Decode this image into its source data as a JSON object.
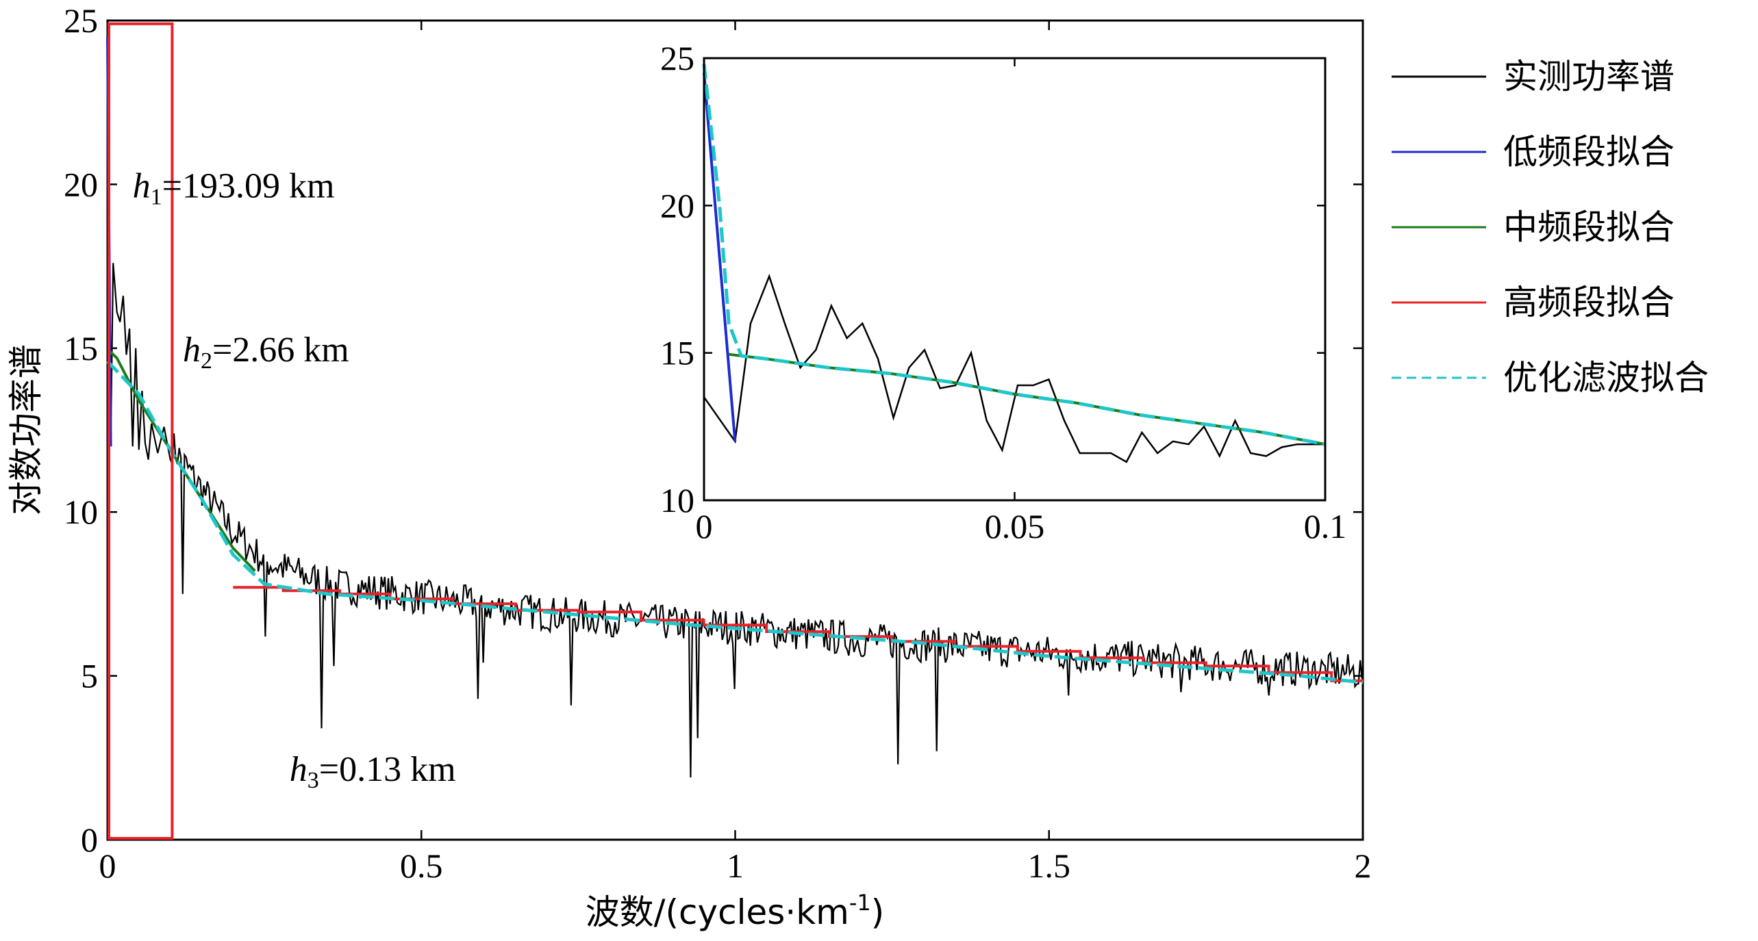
{
  "chart_data": [
    {
      "type": "line",
      "xlabel": "波数/(cycles·km",
      "xlabel_sup": "-1",
      "xlabel_end": ")",
      "ylabel": "对数功率谱",
      "xlim": [
        0,
        2
      ],
      "ylim": [
        0,
        25
      ],
      "xticks": [
        "0",
        "0.5",
        "1",
        "1.5",
        "2"
      ],
      "yticks": [
        "0",
        "5",
        "10",
        "15",
        "20",
        "25"
      ],
      "highlight_box": {
        "x0": 0,
        "x1": 0.103,
        "y0": 0,
        "y1": 24.9,
        "color": "#e8222a"
      },
      "annotations": [
        {
          "base": "h",
          "sub": "1",
          "text": "=193.09 km",
          "x": 0.04,
          "y": 19.6
        },
        {
          "base": "h",
          "sub": "2",
          "text": "=2.66 km",
          "x": 0.12,
          "y": 14.6
        },
        {
          "base": "h",
          "sub": "3",
          "text": "=0.13 km",
          "x": 0.29,
          "y": 1.8
        }
      ],
      "series": [
        {
          "name": "实测功率谱",
          "color": "#000000",
          "style": "solid",
          "trend": [
            [
              0.0,
              14.8
            ],
            [
              0.05,
              14.0
            ],
            [
              0.1,
              12.1
            ],
            [
              0.15,
              10.7
            ],
            [
              0.2,
              9.4
            ],
            [
              0.25,
              8.5
            ],
            [
              0.35,
              7.8
            ],
            [
              0.5,
              7.4
            ],
            [
              0.7,
              6.9
            ],
            [
              0.9,
              6.6
            ],
            [
              1.0,
              6.5
            ],
            [
              1.2,
              6.1
            ],
            [
              1.5,
              5.7
            ],
            [
              1.8,
              5.3
            ],
            [
              2.0,
              5.1
            ]
          ],
          "noise_amplitude": 0.55,
          "dips": [
            [
              0.12,
              7.5
            ],
            [
              0.25,
              6.2
            ],
            [
              0.34,
              3.4
            ],
            [
              0.36,
              5.3
            ],
            [
              0.59,
              4.3
            ],
            [
              0.6,
              5.4
            ],
            [
              0.74,
              4.1
            ],
            [
              0.93,
              1.9
            ],
            [
              0.94,
              3.1
            ],
            [
              1.0,
              4.6
            ],
            [
              1.26,
              2.3
            ],
            [
              1.32,
              2.7
            ],
            [
              1.53,
              4.4
            ],
            [
              1.71,
              4.5
            ],
            [
              1.85,
              4.4
            ]
          ],
          "start_peaks": [
            [
              0.0,
              13.5
            ],
            [
              0.005,
              12.0
            ],
            [
              0.009,
              17.6
            ],
            [
              0.015,
              16.1
            ],
            [
              0.02,
              15.8
            ],
            [
              0.025,
              16.6
            ],
            [
              0.03,
              14.8
            ],
            [
              0.035,
              15.6
            ],
            [
              0.04,
              12.0
            ],
            [
              0.045,
              15.0
            ],
            [
              0.05,
              11.9
            ],
            [
              0.055,
              13.7
            ],
            [
              0.06,
              12.1
            ],
            [
              0.065,
              11.6
            ],
            [
              0.07,
              12.7
            ],
            [
              0.08,
              11.8
            ],
            [
              0.09,
              12.6
            ],
            [
              0.1,
              11.6
            ]
          ]
        },
        {
          "name": "低频段拟合",
          "color": "#1d2bd1",
          "style": "solid",
          "points": [
            [
              0.0,
              24.5
            ],
            [
              0.005,
              12.0
            ]
          ]
        },
        {
          "name": "中频段拟合",
          "color": "#1d7a1d",
          "style": "solid",
          "points": [
            [
              0.004,
              14.9
            ],
            [
              0.015,
              14.7
            ],
            [
              0.05,
              13.4
            ],
            [
              0.1,
              11.9
            ],
            [
              0.15,
              10.4
            ],
            [
              0.2,
              8.9
            ],
            [
              0.235,
              8.2
            ]
          ]
        },
        {
          "name": "高频段拟合",
          "color": "#e8222a",
          "style": "step",
          "points": [
            [
              0.2,
              7.7
            ],
            [
              0.28,
              7.6
            ],
            [
              0.37,
              7.5
            ],
            [
              0.45,
              7.35
            ],
            [
              0.55,
              7.2
            ],
            [
              0.65,
              7.0
            ],
            [
              0.75,
              6.95
            ],
            [
              0.85,
              6.7
            ],
            [
              0.95,
              6.55
            ],
            [
              1.05,
              6.35
            ],
            [
              1.15,
              6.2
            ],
            [
              1.25,
              6.05
            ],
            [
              1.35,
              5.9
            ],
            [
              1.45,
              5.75
            ],
            [
              1.55,
              5.55
            ],
            [
              1.65,
              5.4
            ],
            [
              1.75,
              5.3
            ],
            [
              1.85,
              5.1
            ],
            [
              1.95,
              4.85
            ],
            [
              2.0,
              4.8
            ]
          ]
        },
        {
          "name": "优化滤波拟合",
          "color": "#1fc6c9",
          "style": "dashed",
          "points": [
            [
              0.0,
              14.6
            ],
            [
              0.05,
              13.6
            ],
            [
              0.1,
              11.9
            ],
            [
              0.15,
              10.4
            ],
            [
              0.2,
              8.7
            ],
            [
              0.25,
              7.8
            ],
            [
              0.35,
              7.5
            ],
            [
              0.5,
              7.3
            ],
            [
              0.7,
              6.95
            ],
            [
              0.9,
              6.6
            ],
            [
              1.1,
              6.3
            ],
            [
              1.3,
              6.0
            ],
            [
              1.5,
              5.6
            ],
            [
              1.7,
              5.3
            ],
            [
              1.9,
              5.0
            ],
            [
              2.0,
              4.8
            ]
          ]
        }
      ]
    },
    {
      "type": "line",
      "inset": true,
      "xlim": [
        0,
        0.1
      ],
      "ylim": [
        10,
        25
      ],
      "xticks": [
        "0",
        "0.05",
        "0.1"
      ],
      "yticks": [
        "10",
        "15",
        "20",
        "25"
      ],
      "series": [
        {
          "name": "实测功率谱",
          "color": "#000000",
          "style": "solid",
          "points": [
            [
              0.0,
              13.5
            ],
            [
              0.005,
              12.0
            ],
            [
              0.0075,
              16.0
            ],
            [
              0.0105,
              17.6
            ],
            [
              0.013,
              16.0
            ],
            [
              0.0155,
              14.5
            ],
            [
              0.018,
              15.1
            ],
            [
              0.0205,
              16.6
            ],
            [
              0.023,
              15.5
            ],
            [
              0.0255,
              16.0
            ],
            [
              0.028,
              14.8
            ],
            [
              0.0305,
              12.8
            ],
            [
              0.033,
              14.5
            ],
            [
              0.0355,
              15.1
            ],
            [
              0.038,
              13.8
            ],
            [
              0.0405,
              13.9
            ],
            [
              0.043,
              15.0
            ],
            [
              0.0455,
              12.7
            ],
            [
              0.048,
              11.7
            ],
            [
              0.0505,
              13.9
            ],
            [
              0.053,
              13.9
            ],
            [
              0.0555,
              14.1
            ],
            [
              0.058,
              12.7
            ],
            [
              0.0605,
              11.6
            ],
            [
              0.063,
              11.6
            ],
            [
              0.0655,
              11.6
            ],
            [
              0.068,
              11.3
            ],
            [
              0.0705,
              12.3
            ],
            [
              0.073,
              11.6
            ],
            [
              0.0755,
              12.0
            ],
            [
              0.078,
              11.9
            ],
            [
              0.0805,
              12.5
            ],
            [
              0.083,
              11.5
            ],
            [
              0.0855,
              12.7
            ],
            [
              0.088,
              11.6
            ],
            [
              0.0905,
              11.5
            ],
            [
              0.093,
              11.8
            ],
            [
              0.0955,
              11.9
            ],
            [
              0.1,
              11.9
            ]
          ]
        },
        {
          "name": "低频段拟合",
          "color": "#1d2bd1",
          "style": "solid",
          "points": [
            [
              0.0,
              24.5
            ],
            [
              0.005,
              12.0
            ]
          ]
        },
        {
          "name": "中频段拟合",
          "color": "#1d7a1d",
          "style": "solid",
          "points": [
            [
              0.004,
              14.95
            ],
            [
              0.01,
              14.8
            ],
            [
              0.02,
              14.5
            ],
            [
              0.03,
              14.3
            ],
            [
              0.04,
              14.0
            ],
            [
              0.05,
              13.6
            ],
            [
              0.06,
              13.3
            ],
            [
              0.07,
              12.9
            ],
            [
              0.08,
              12.6
            ],
            [
              0.09,
              12.3
            ],
            [
              0.1,
              11.9
            ]
          ]
        },
        {
          "name": "优化滤波拟合",
          "color": "#1fc6c9",
          "style": "dashed",
          "points": [
            [
              0.0,
              24.8
            ],
            [
              0.0025,
              20.0
            ],
            [
              0.004,
              16.0
            ],
            [
              0.006,
              14.9
            ],
            [
              0.01,
              14.8
            ],
            [
              0.02,
              14.5
            ],
            [
              0.03,
              14.3
            ],
            [
              0.04,
              14.0
            ],
            [
              0.05,
              13.6
            ],
            [
              0.06,
              13.3
            ],
            [
              0.07,
              12.9
            ],
            [
              0.08,
              12.6
            ],
            [
              0.09,
              12.3
            ],
            [
              0.1,
              11.9
            ]
          ]
        }
      ]
    }
  ],
  "legend": {
    "position": "right",
    "entries": [
      {
        "label": "实测功率谱",
        "color": "#000000",
        "style": "solid"
      },
      {
        "label": "低频段拟合",
        "color": "#1d2bd1",
        "style": "solid"
      },
      {
        "label": "中频段拟合",
        "color": "#1d7a1d",
        "style": "solid"
      },
      {
        "label": "高频段拟合",
        "color": "#e8222a",
        "style": "solid"
      },
      {
        "label": "优化滤波拟合",
        "color": "#1fc6c9",
        "style": "dashed"
      }
    ]
  }
}
